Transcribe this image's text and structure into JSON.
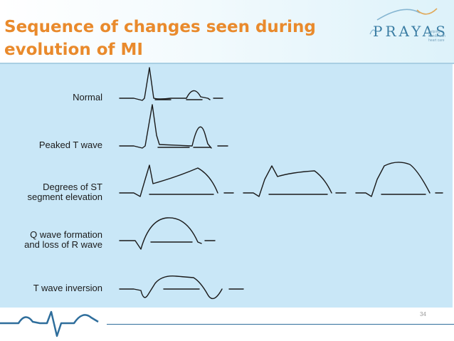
{
  "slide": {
    "title_line1": "Sequence of changes seen during",
    "title_line2": "evolution of MI",
    "page_number": "34"
  },
  "logo": {
    "text": "PRAYAS",
    "tagline": "helping hands with heart care"
  },
  "figure": {
    "rows": [
      {
        "label": "Normal"
      },
      {
        "label": "Peaked T wave"
      },
      {
        "label": "Degrees of ST\nsegment elevation"
      },
      {
        "label": "Q wave formation\nand loss of R wave"
      },
      {
        "label": "T wave inversion"
      }
    ]
  },
  "colors": {
    "title": "#e98a2c",
    "panel": "#c9e7f7",
    "brand_blue": "#2f6e9c"
  }
}
